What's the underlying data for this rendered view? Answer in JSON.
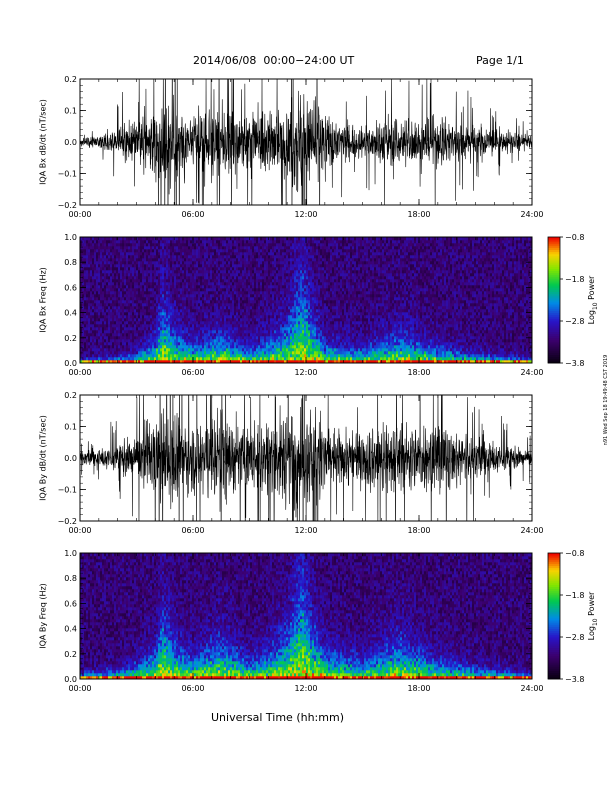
{
  "header": {
    "title": "2014/06/08  00:00−24:00 UT",
    "page": "Page 1/1"
  },
  "footer": {
    "xaxis_label": "Universal Time (hh:mm)",
    "stamp": "n91 Wed Sep 18 19:49:48 CST 2019"
  },
  "chart_data": [
    {
      "type": "line",
      "title": "",
      "ylabel": "IQA Bx dB/dt (nT/sec)",
      "xlim": [
        "00:00",
        "24:00"
      ],
      "ylim": [
        -0.2,
        0.2
      ],
      "xticks": [
        "00:00",
        "06:00",
        "12:00",
        "18:00",
        "24:00"
      ],
      "yticks": [
        "−0.2",
        "−0.1",
        "0.0",
        "0.1",
        "0.2"
      ],
      "color": "#000000",
      "envelope_hours": [
        0,
        1,
        2,
        3,
        4,
        4.5,
        5,
        6,
        7,
        7.5,
        8,
        9,
        10,
        11,
        11.5,
        12,
        12.5,
        13,
        14,
        15,
        16,
        17,
        18,
        19,
        20,
        21,
        22,
        23,
        24
      ],
      "envelope_amplitude": [
        0.02,
        0.03,
        0.06,
        0.1,
        0.16,
        0.24,
        0.2,
        0.13,
        0.16,
        0.2,
        0.14,
        0.12,
        0.14,
        0.16,
        0.24,
        0.22,
        0.24,
        0.12,
        0.09,
        0.07,
        0.1,
        0.12,
        0.1,
        0.12,
        0.1,
        0.08,
        0.06,
        0.04,
        0.03
      ]
    },
    {
      "type": "heatmap",
      "title": "",
      "ylabel": "IQA Bx Freq (Hz)",
      "xlim": [
        "00:00",
        "24:00"
      ],
      "ylim": [
        0.0,
        1.0
      ],
      "xticks": [
        "00:00",
        "06:00",
        "12:00",
        "18:00",
        "24:00"
      ],
      "yticks": [
        "0.0",
        "0.2",
        "0.4",
        "0.6",
        "0.8",
        "1.0"
      ],
      "colorbar": {
        "label": "Log10 Power",
        "ticks": [
          "−0.8",
          "−1.8",
          "−2.8",
          "−3.8"
        ],
        "range": [
          -3.8,
          -0.8
        ]
      },
      "activity_hours": [
        0,
        2,
        3,
        4,
        4.4,
        5,
        6,
        7.5,
        9,
        10,
        11,
        11.8,
        12.3,
        13,
        15,
        17,
        19,
        21,
        24
      ],
      "activity_height_hz": [
        0.02,
        0.03,
        0.05,
        0.12,
        0.3,
        0.18,
        0.1,
        0.15,
        0.08,
        0.12,
        0.2,
        0.45,
        0.25,
        0.1,
        0.08,
        0.15,
        0.08,
        0.05,
        0.02
      ]
    },
    {
      "type": "line",
      "title": "",
      "ylabel": "IQA By dB/dt (nT/sec)",
      "xlim": [
        "00:00",
        "24:00"
      ],
      "ylim": [
        -0.2,
        0.2
      ],
      "xticks": [
        "00:00",
        "06:00",
        "12:00",
        "18:00",
        "24:00"
      ],
      "yticks": [
        "−0.2",
        "−0.1",
        "0.0",
        "0.1",
        "0.2"
      ],
      "color": "#000000",
      "envelope_hours": [
        0,
        1,
        2,
        3,
        4,
        4.5,
        5,
        6,
        7,
        7.5,
        8,
        9,
        10,
        11,
        11.5,
        12,
        12.5,
        13,
        14,
        15,
        16,
        17,
        18,
        19,
        20,
        21,
        22,
        23,
        24
      ],
      "envelope_amplitude": [
        0.03,
        0.04,
        0.06,
        0.12,
        0.18,
        0.24,
        0.22,
        0.16,
        0.2,
        0.24,
        0.18,
        0.14,
        0.18,
        0.2,
        0.24,
        0.24,
        0.24,
        0.16,
        0.12,
        0.12,
        0.16,
        0.16,
        0.14,
        0.16,
        0.14,
        0.1,
        0.07,
        0.05,
        0.04
      ]
    },
    {
      "type": "heatmap",
      "title": "",
      "ylabel": "IQA By Freq (Hz)",
      "xlim": [
        "00:00",
        "24:00"
      ],
      "ylim": [
        0.0,
        1.0
      ],
      "xticks": [
        "00:00",
        "06:00",
        "12:00",
        "18:00",
        "24:00"
      ],
      "yticks": [
        "0.0",
        "0.2",
        "0.4",
        "0.6",
        "0.8",
        "1.0"
      ],
      "colorbar": {
        "label": "Log10 Power",
        "ticks": [
          "−0.8",
          "−1.8",
          "−2.8",
          "−3.8"
        ],
        "range": [
          -3.8,
          -0.8
        ]
      },
      "activity_hours": [
        0,
        2,
        3,
        4,
        4.4,
        5,
        6,
        7.5,
        9,
        10,
        11,
        11.8,
        12.3,
        13,
        15,
        17,
        19,
        21,
        24
      ],
      "activity_height_hz": [
        0.03,
        0.05,
        0.08,
        0.15,
        0.35,
        0.2,
        0.12,
        0.2,
        0.1,
        0.15,
        0.25,
        0.55,
        0.3,
        0.15,
        0.1,
        0.2,
        0.1,
        0.06,
        0.03
      ]
    }
  ]
}
